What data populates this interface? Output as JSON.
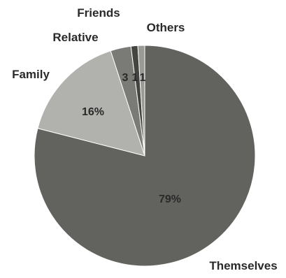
{
  "chart_data": {
    "type": "pie",
    "title": "",
    "slices": [
      {
        "label": "Themselves",
        "value": 79,
        "value_text": "79%",
        "color": "#62625e"
      },
      {
        "label": "Family",
        "value": 16,
        "value_text": "16%",
        "color": "#b1b1ad"
      },
      {
        "label": "Relative",
        "value": 3,
        "value_text": "3",
        "color": "#7a7a76"
      },
      {
        "label": "Friends",
        "value": 1,
        "value_text": "1",
        "color": "#444441"
      },
      {
        "label": "Others",
        "value": 1,
        "value_text": "1",
        "color": "#999995"
      }
    ]
  }
}
